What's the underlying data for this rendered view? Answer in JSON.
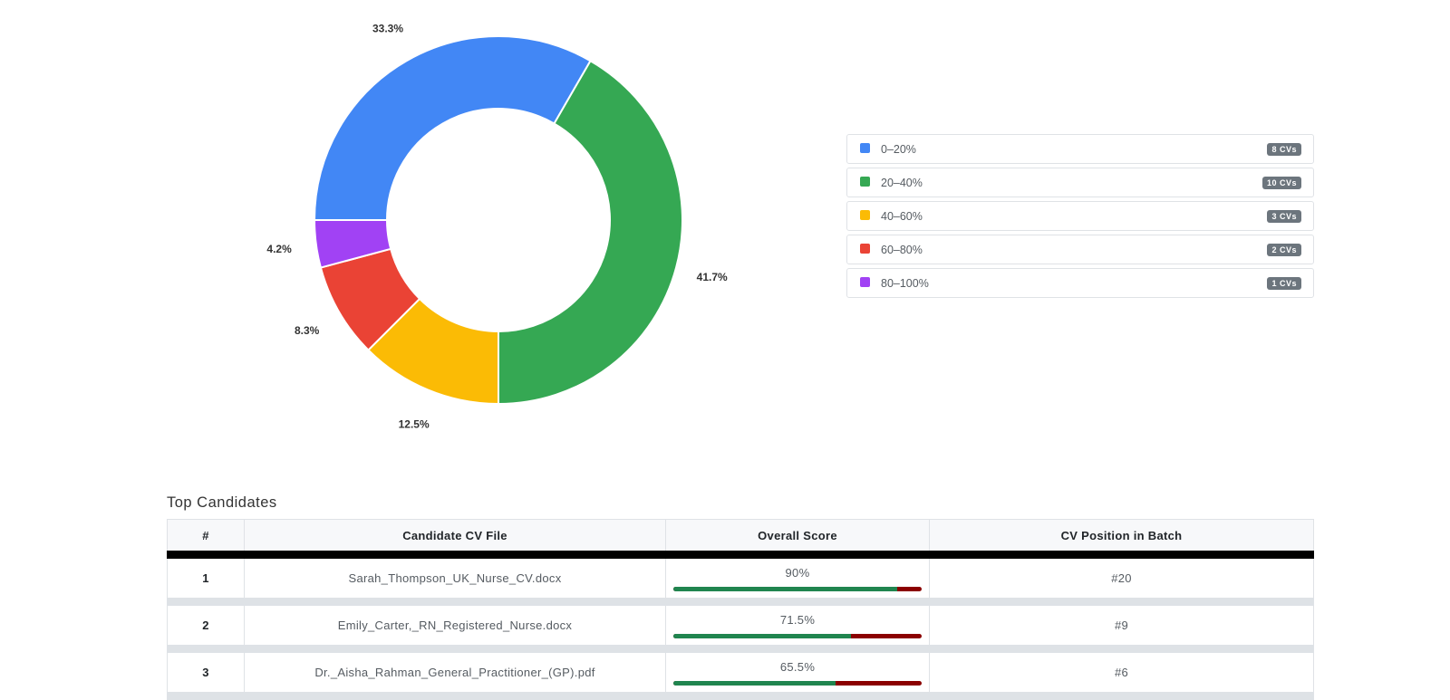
{
  "chart_data": {
    "type": "pie",
    "variant": "donut",
    "categories": [
      "0–20%",
      "20–40%",
      "40–60%",
      "60–80%",
      "80–100%"
    ],
    "values": [
      8,
      10,
      3,
      2,
      1
    ],
    "percent_labels": [
      "33.3%",
      "41.7%",
      "12.5%",
      "8.3%",
      "4.2%"
    ],
    "colors": [
      "#4287f5",
      "#35a853",
      "#fbbb05",
      "#ea4335",
      "#a142f4"
    ],
    "legend_placement": "right",
    "legend": [
      {
        "label": "0–20%",
        "count": "8 CVs"
      },
      {
        "label": "20–40%",
        "count": "10 CVs"
      },
      {
        "label": "40–60%",
        "count": "3 CVs"
      },
      {
        "label": "60–80%",
        "count": "2 CVs"
      },
      {
        "label": "80–100%",
        "count": "1 CVs"
      }
    ]
  },
  "top_candidates": {
    "title": "Top Candidates",
    "headers": [
      "#",
      "Candidate CV File",
      "Overall Score",
      "CV Position in Batch"
    ],
    "rows": [
      {
        "rank": "1",
        "file": "Sarah_Thompson_UK_Nurse_CV.docx",
        "score": "90%",
        "score_value": 90,
        "position": "#20"
      },
      {
        "rank": "2",
        "file": "Emily_Carter,_RN_Registered_Nurse.docx",
        "score": "71.5%",
        "score_value": 71.5,
        "position": "#9"
      },
      {
        "rank": "3",
        "file": "Dr._Aisha_Rahman_General_Practitioner_(GP).pdf",
        "score": "65.5%",
        "score_value": 65.5,
        "position": "#6"
      }
    ],
    "score_bar_colors": {
      "fill": "#20854f",
      "remainder": "#8b0000"
    }
  }
}
